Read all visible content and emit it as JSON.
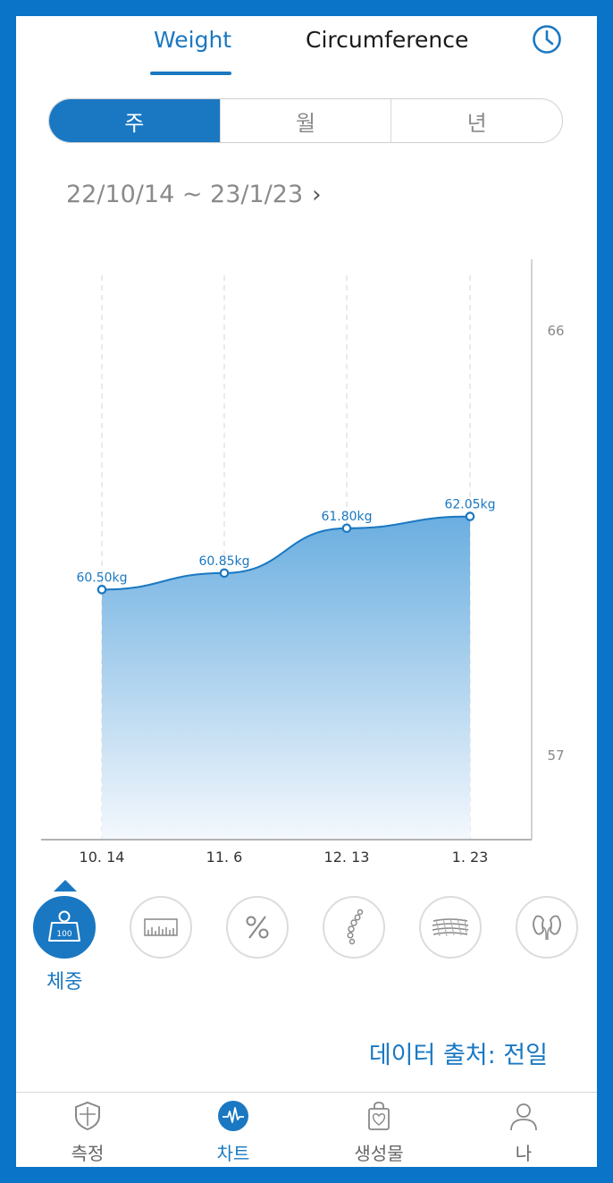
{
  "tabs": {
    "weight": "Weight",
    "circumference": "Circumference"
  },
  "icons": {
    "history": "history-clock-icon"
  },
  "period": {
    "items": [
      "주",
      "월",
      "년"
    ],
    "selected": "주"
  },
  "date_range": {
    "text": "22/10/14 ~ 23/1/23",
    "chevron": "›"
  },
  "chart_data": {
    "type": "area",
    "x": [
      "10. 14",
      "11. 6",
      "12. 13",
      "1. 23"
    ],
    "values": [
      60.5,
      60.85,
      61.8,
      62.05
    ],
    "data_labels": [
      "60.50kg",
      "60.85kg",
      "61.80kg",
      "62.05kg"
    ],
    "y_ticks": [
      66,
      57
    ],
    "ylim": [
      55.2,
      67.5
    ],
    "y_axis_side": "right",
    "grid": "vertical dashed",
    "colors": {
      "line": "#1a78c2",
      "fill_top": "#6aaee0",
      "fill_bottom": "#f4f8fd"
    }
  },
  "metrics": {
    "items": [
      "weight-icon",
      "bar-chart-icon",
      "percent-icon",
      "spine-icon",
      "muscle-icon",
      "kidney-icon"
    ],
    "selected_label": "체중"
  },
  "source_text": "데이터 출처: 전일",
  "bottom_nav": [
    {
      "label": "측정",
      "icon": "shield-icon"
    },
    {
      "label": "차트",
      "icon": "heartbeat-icon",
      "active": true
    },
    {
      "label": "생성물",
      "icon": "bag-icon"
    },
    {
      "label": "나",
      "icon": "person-icon"
    }
  ],
  "colors": {
    "accent": "#1a78c2",
    "border": "#0a74c8"
  }
}
